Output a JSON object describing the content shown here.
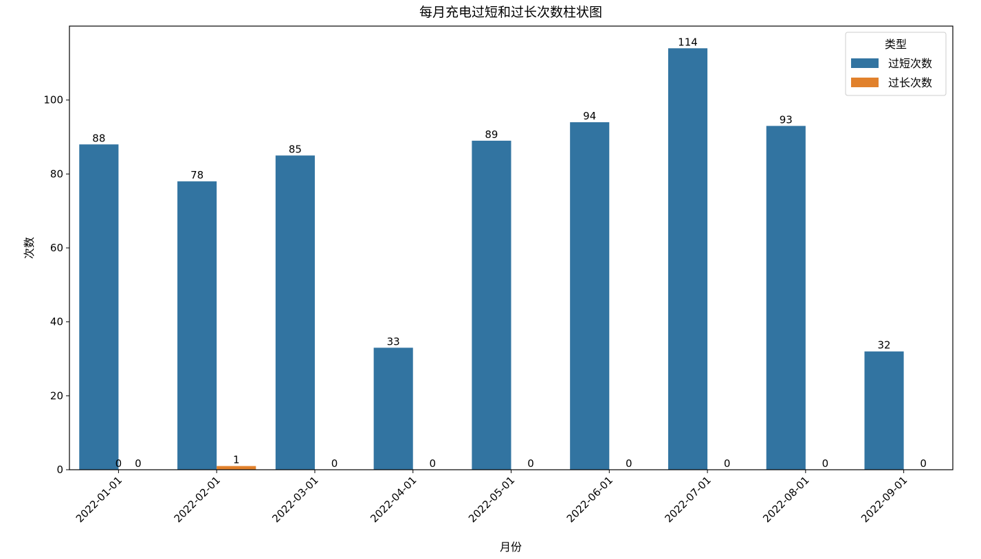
{
  "chart_data": {
    "type": "bar",
    "title": "每月充电过短和过长次数柱状图",
    "xlabel": "月份",
    "ylabel": "次数",
    "categories": [
      "2022-01-01",
      "2022-02-01",
      "2022-03-01",
      "2022-04-01",
      "2022-05-01",
      "2022-06-01",
      "2022-07-01",
      "2022-08-01",
      "2022-09-01"
    ],
    "series": [
      {
        "name": "过短次数",
        "color": "#3274a1",
        "values": [
          88,
          78,
          85,
          33,
          89,
          94,
          114,
          93,
          32
        ]
      },
      {
        "name": "过长次数",
        "color": "#e1812c",
        "values": [
          0,
          1,
          0,
          0,
          0,
          0,
          0,
          0,
          0
        ]
      }
    ],
    "ylim": [
      0,
      120
    ],
    "yticks": [
      0,
      20,
      40,
      60,
      80,
      100
    ],
    "grid": false,
    "legend": {
      "title": "类型",
      "placement": "top-right"
    },
    "extra_labels": [
      {
        "category": "2022-01-01",
        "text": "0"
      }
    ]
  }
}
